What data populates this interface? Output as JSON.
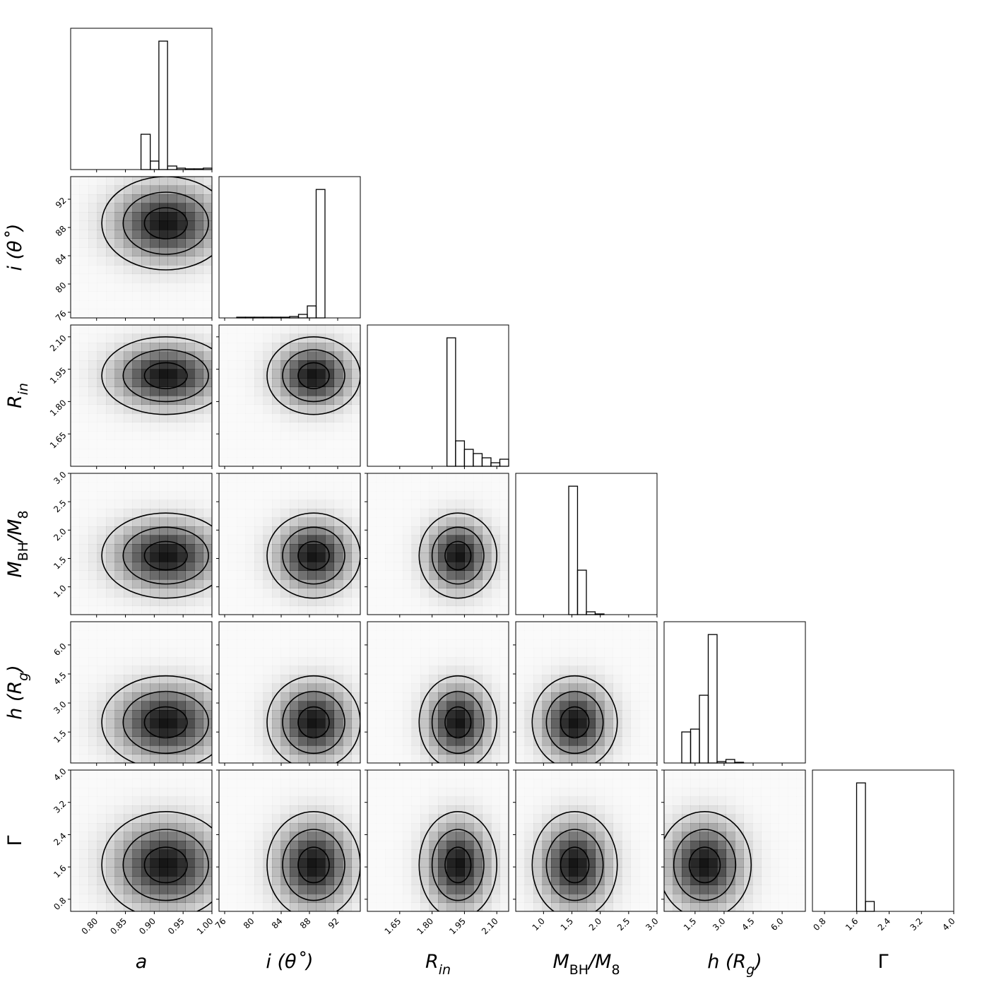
{
  "chart_data": {
    "type": "corner",
    "contour_levels": [
      1,
      2,
      3
    ],
    "color": "#000000",
    "parameters": [
      {
        "label": [
          {
            "text": "a"
          }
        ],
        "lim": [
          0.755,
          1.0
        ],
        "ticks": [
          {
            "value": 0.8,
            "label": "0.80"
          },
          {
            "value": 0.85,
            "label": "0.85"
          },
          {
            "value": 0.9,
            "label": "0.90"
          },
          {
            "value": 0.95,
            "label": "0.95"
          },
          {
            "value": 1.0,
            "label": "1.00"
          }
        ],
        "bins": [
          0.755,
          0.77,
          0.786,
          0.801,
          0.816,
          0.831,
          0.847,
          0.862,
          0.877,
          0.893,
          0.908,
          0.923,
          0.939,
          0.954,
          0.969,
          0.985,
          1.0
        ],
        "counts": [
          0,
          0,
          0,
          0,
          0,
          0,
          0,
          0,
          50,
          12,
          182,
          5,
          2,
          1,
          1,
          2
        ],
        "peak": 0.92,
        "sigma": 0.037
      },
      {
        "label": [
          {
            "text": "i (θ˚)"
          }
        ],
        "lim": [
          75.2,
          95.2
        ],
        "ticks": [
          76,
          80,
          84,
          88,
          92
        ],
        "bins": [
          75.2,
          76.45,
          77.7,
          78.95,
          80.2,
          81.45,
          82.7,
          83.95,
          85.2,
          86.45,
          87.7,
          88.95,
          90.2,
          91.45,
          92.7,
          93.95,
          95.2
        ],
        "counts": [
          0,
          0,
          1,
          1,
          1,
          1,
          1,
          1,
          2,
          5,
          17,
          182,
          0,
          0,
          0,
          0
        ],
        "peak": 88.6,
        "sigma": 2.2
      },
      {
        "label": [
          {
            "text": "R"
          },
          {
            "text": "in",
            "sub": true
          }
        ],
        "lim": [
          1.5,
          2.155
        ],
        "ticks": [
          1.65,
          {
            "value": 1.8,
            "label": "1.80"
          },
          1.95,
          {
            "value": 2.1,
            "label": "2.10"
          }
        ],
        "bins": [
          1.5,
          1.541,
          1.582,
          1.623,
          1.664,
          1.705,
          1.746,
          1.787,
          1.828,
          1.869,
          1.909,
          1.95,
          1.991,
          2.032,
          2.073,
          2.114,
          2.155
        ],
        "counts": [
          0,
          0,
          0,
          0,
          0,
          0,
          0,
          0,
          0,
          182,
          36,
          24,
          18,
          12,
          5,
          10
        ],
        "peak": 1.92,
        "sigma": 0.06
      },
      {
        "label": [
          {
            "text": "M"
          },
          {
            "text": "BH",
            "sub": true,
            "roman": true
          },
          {
            "text": "/M"
          },
          {
            "text": "8",
            "sub": true,
            "roman": true
          }
        ],
        "lim": [
          0.51,
          3.0
        ],
        "ticks": [
          {
            "value": 1.0,
            "label": "1.0"
          },
          1.5,
          {
            "value": 2.0,
            "label": "2.0"
          },
          2.5,
          {
            "value": 3.0,
            "label": "3.0"
          }
        ],
        "bins": [
          0.51,
          0.666,
          0.821,
          0.977,
          1.132,
          1.288,
          1.444,
          1.599,
          1.755,
          1.91,
          2.066,
          2.222,
          2.377,
          2.533,
          2.688,
          2.844,
          3.0
        ],
        "counts": [
          0,
          0,
          0,
          0,
          0,
          0,
          182,
          63,
          4,
          1,
          0,
          0,
          0,
          0,
          0,
          0
        ],
        "peak": 1.55,
        "sigma": 0.25
      },
      {
        "label": [
          {
            "text": "h (R"
          },
          {
            "text": "g",
            "sub": true
          },
          {
            "text": ")"
          }
        ],
        "lim": [
          -0.1,
          7.2
        ],
        "ticks": [
          1.5,
          {
            "value": 3.0,
            "label": "3.0"
          },
          4.5,
          {
            "value": 6.0,
            "label": "6.0"
          }
        ],
        "bins": [
          -0.1,
          0.356,
          0.813,
          1.269,
          1.725,
          2.181,
          2.638,
          3.094,
          3.55,
          4.006,
          4.463,
          4.919,
          5.375,
          5.831,
          6.288,
          6.744,
          7.2
        ],
        "counts": [
          0,
          0,
          44,
          48,
          96,
          182,
          2,
          5,
          1,
          0,
          0,
          0,
          0,
          0,
          0,
          0
        ],
        "peak": 2.0,
        "sigma": 0.8
      },
      {
        "label": [
          {
            "text": "Γ",
            "roman": true
          }
        ],
        "lim": [
          0.5,
          4.0
        ],
        "ticks": [
          0.8,
          1.6,
          2.4,
          3.2,
          {
            "value": 4.0,
            "label": "4.0"
          }
        ],
        "bins": [
          0.5,
          0.719,
          0.938,
          1.156,
          1.375,
          1.594,
          1.813,
          2.031,
          2.25,
          2.469,
          2.688,
          2.906,
          3.125,
          3.344,
          3.563,
          3.781,
          4.0
        ],
        "counts": [
          0,
          0,
          0,
          0,
          0,
          182,
          14,
          0,
          0,
          0,
          0,
          0,
          0,
          0,
          0,
          0
        ],
        "peak": 1.65,
        "sigma": 0.44
      }
    ]
  }
}
